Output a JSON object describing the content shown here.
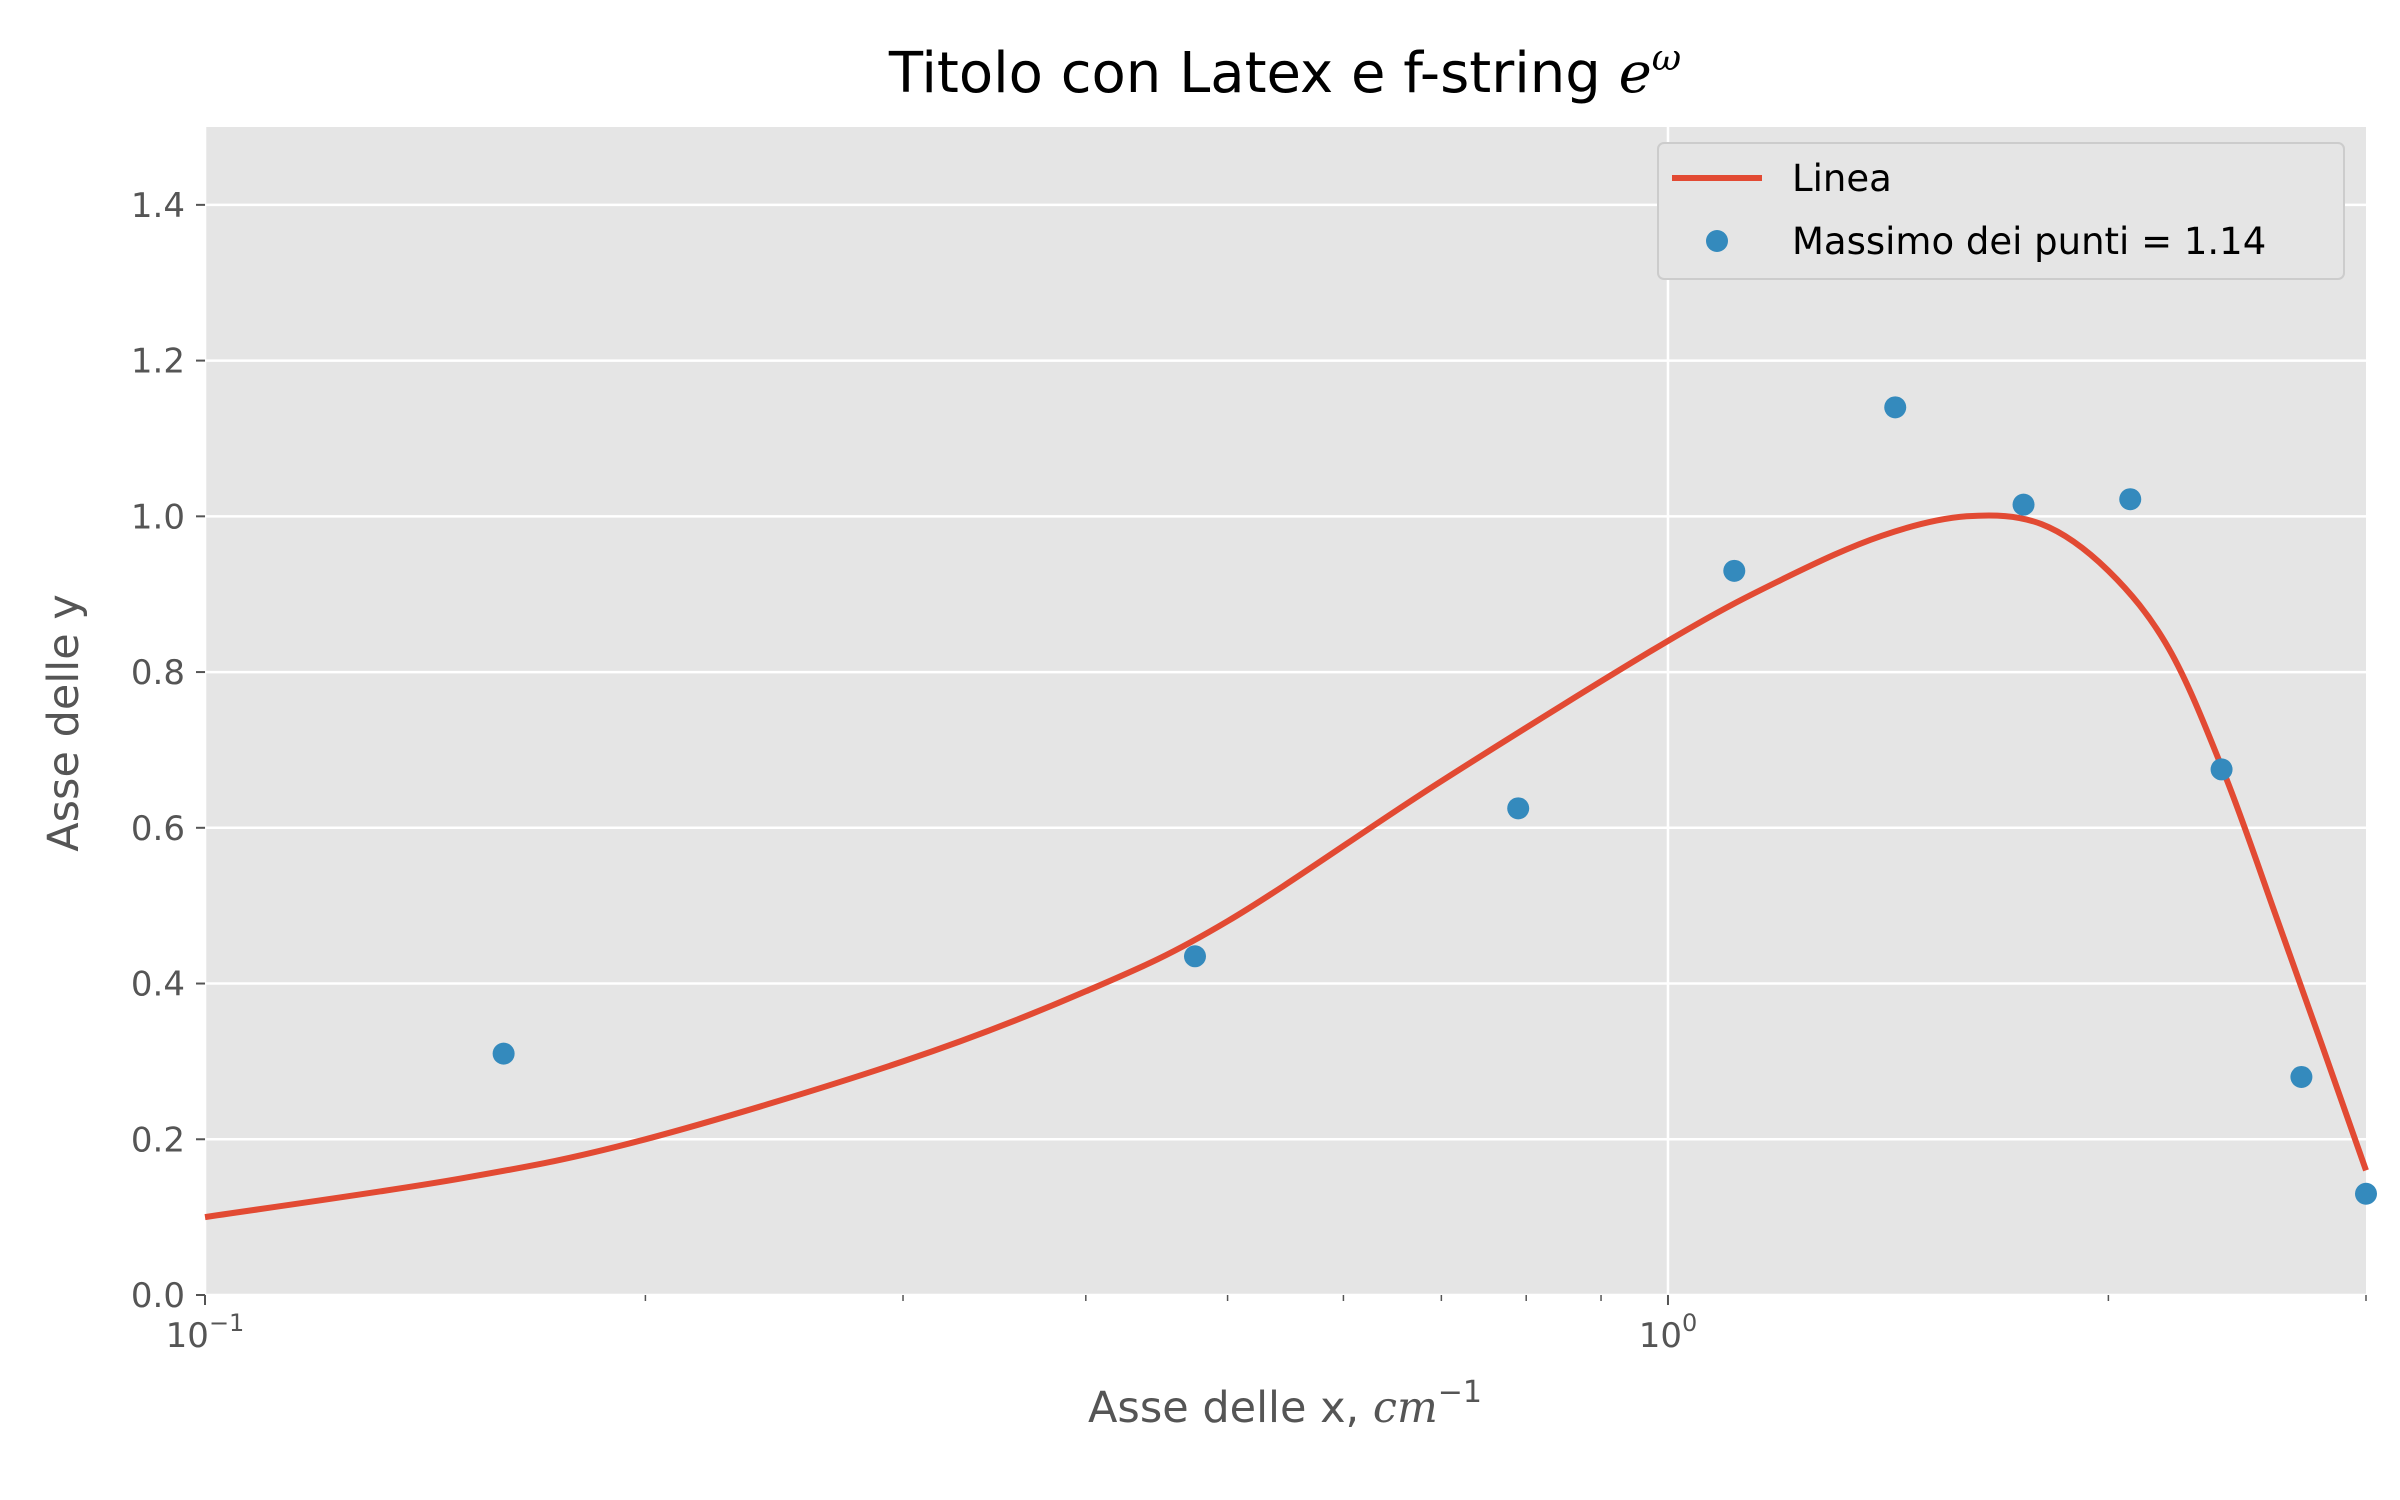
{
  "chart_data": {
    "type": "line+scatter",
    "title": "Titolo con Latex e f-string ",
    "title_math": "e",
    "title_sup": "ω",
    "xlabel": "Asse delle x, ",
    "xlabel_math": "cm",
    "xlabel_sup": "−1",
    "ylabel": "Asse delle y",
    "xscale": "log",
    "xlim": [
      0.1,
      3.0
    ],
    "ylim": [
      0.0,
      1.5
    ],
    "x_ticks": [
      {
        "value": 0.1,
        "base": "10",
        "exp": "−1"
      },
      {
        "value": 1.0,
        "base": "10",
        "exp": "0"
      }
    ],
    "y_ticks": [
      {
        "value": 0.0,
        "label": "0.0"
      },
      {
        "value": 0.2,
        "label": "0.2"
      },
      {
        "value": 0.4,
        "label": "0.4"
      },
      {
        "value": 0.6,
        "label": "0.6"
      },
      {
        "value": 0.8,
        "label": "0.8"
      },
      {
        "value": 1.0,
        "label": "1.0"
      },
      {
        "value": 1.2,
        "label": "1.2"
      },
      {
        "value": 1.4,
        "label": "1.4"
      }
    ],
    "grid": true,
    "legend_position": "top-right",
    "series": [
      {
        "name": "Linea",
        "kind": "line",
        "color": "#E24A33",
        "x": [
          0.1,
          0.15,
          0.2,
          0.3,
          0.4,
          0.5,
          0.7,
          1.0,
          1.2,
          1.4,
          1.6,
          1.8,
          2.0,
          2.2,
          2.4,
          2.6,
          2.8,
          3.0
        ],
        "y": [
          0.1,
          0.15,
          0.2,
          0.3,
          0.39,
          0.48,
          0.66,
          0.84,
          0.92,
          0.975,
          1.0,
          0.99,
          0.93,
          0.83,
          0.67,
          0.49,
          0.32,
          0.16
        ]
      },
      {
        "name": "Massimo dei punti = 1.14",
        "kind": "scatter",
        "color": "#348ABD",
        "x": [
          0.16,
          0.475,
          0.79,
          1.11,
          1.43,
          1.75,
          2.07,
          2.39,
          2.71,
          3.0
        ],
        "y": [
          0.31,
          0.435,
          0.625,
          0.93,
          1.14,
          1.015,
          1.022,
          0.675,
          0.28,
          0.13
        ]
      }
    ],
    "colors": {
      "plot_background": "#E5E5E5",
      "grid": "#FFFFFF",
      "text": "#555555"
    }
  }
}
